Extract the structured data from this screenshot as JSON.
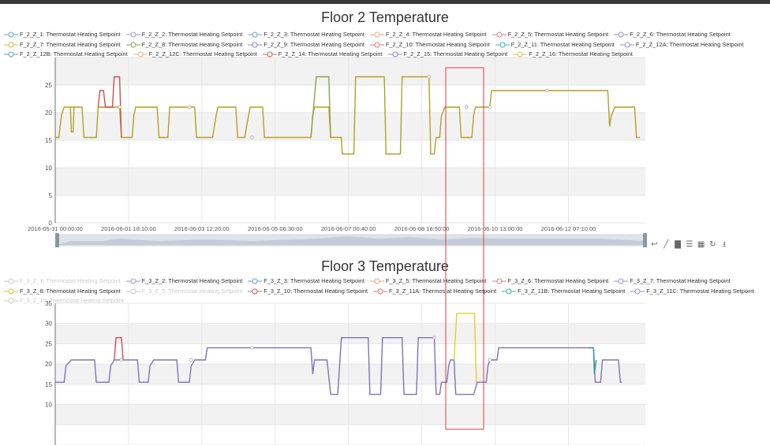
{
  "colors": {
    "grid_band": "#f2f2f2",
    "gridline": "#e6e6e6",
    "axis": "#6e7079",
    "highlight_box": "#e83b3b",
    "floor2_main": "#b2a024",
    "floor2_olive": "#8aa445",
    "floor2_red": "#d34d4d",
    "floor3_main": "#7e73bd",
    "floor3_red": "#d34d4d",
    "floor3_yellow": "#e7cd2b",
    "floor3_teal": "#2f9a9a"
  },
  "chart_data": [
    {
      "type": "line",
      "title": "Floor 2 Temperature",
      "ylim": [
        0,
        30
      ],
      "yticks": [
        "0",
        "5",
        "10",
        "15",
        "20",
        "25"
      ],
      "xticks": [
        "2016-05-31 00:00:00",
        "2016-06-01 18:10:00",
        "2016-06-03 12:20:00",
        "2016-06-05 06:30:00",
        "2016-06-07 00:40:00",
        "2016-06-08 18:50:00",
        "2016-06-10 13:00:00",
        "2016-06-12 07:10:00"
      ],
      "grid": true,
      "legend_position": "top",
      "legend": [
        {
          "name": "F_2_Z_1: Thermostat Heating Setpoint",
          "color": "#5aa9d6",
          "on": true
        },
        {
          "name": "F_2_Z_2: Thermostat Heating Setpoint",
          "color": "#a39ad0",
          "on": true
        },
        {
          "name": "F_2_Z_3: Thermostat Heating Setpoint",
          "color": "#6aa0d8",
          "on": true
        },
        {
          "name": "F_2_Z_4: Thermostat Heating Setpoint",
          "color": "#f0a58a",
          "on": true
        },
        {
          "name": "F_2_Z_5: Thermostat Heating Setpoint",
          "color": "#e08080",
          "on": true
        },
        {
          "name": "F_2_Z_6: Thermostat Heating Setpoint",
          "color": "#a090c8",
          "on": true
        },
        {
          "name": "F_2_Z_7: Thermostat Heating Setpoint",
          "color": "#d4b84a",
          "on": true
        },
        {
          "name": "F_2_Z_8: Thermostat Heating Setpoint",
          "color": "#8aa445",
          "on": true
        },
        {
          "name": "F_2_Z_9: Thermostat Heating Setpoint",
          "color": "#8a8ab0",
          "on": true
        },
        {
          "name": "F_2_Z_10: Thermostat Heating Setpoint",
          "color": "#e07a7a",
          "on": true
        },
        {
          "name": "F_2_Z_11: Thermostat Heating Setpoint",
          "color": "#3fb0b0",
          "on": true
        },
        {
          "name": "F_2_Z_12A: Thermostat Heating Setpoint",
          "color": "#9c8fc6",
          "on": true
        },
        {
          "name": "F_2_Z_12B: Thermostat Heating Setpoint",
          "color": "#6b8fd0",
          "on": true
        },
        {
          "name": "F_2_Z_12C: Thermostat Heating Setpoint",
          "color": "#f0b080",
          "on": true
        },
        {
          "name": "F_2_Z_14: Thermostat Heating Setpoint",
          "color": "#c86060",
          "on": true
        },
        {
          "name": "F_2_Z_15: Thermostat Heating Setpoint",
          "color": "#8a80c0",
          "on": true
        },
        {
          "name": "F_2_Z_16: Thermostat Heating Setpoint",
          "color": "#e0c040",
          "on": true
        }
      ],
      "series": [
        {
          "color_key": "floor2_main",
          "points": [
            [
              0,
              15.5
            ],
            [
              0.2,
              15.5
            ],
            [
              0.35,
              19.5
            ],
            [
              0.5,
              21
            ],
            [
              1.5,
              21
            ],
            [
              1.6,
              15.5
            ],
            [
              2.3,
              15.5
            ],
            [
              2.4,
              21
            ],
            [
              3.6,
              21
            ],
            [
              3.7,
              15.5
            ],
            [
              4.3,
              15.5
            ],
            [
              4.4,
              19.5
            ],
            [
              4.5,
              21
            ],
            [
              5.7,
              21
            ],
            [
              5.8,
              15.5
            ],
            [
              6.3,
              15.5
            ],
            [
              6.4,
              21
            ],
            [
              7.8,
              21
            ],
            [
              7.9,
              15.5
            ],
            [
              8.8,
              15.5
            ],
            [
              8.9,
              17.5
            ],
            [
              9.0,
              19.5
            ],
            [
              9.1,
              21
            ],
            [
              10.1,
              21
            ],
            [
              10.2,
              15.5
            ],
            [
              10.6,
              15.5
            ],
            [
              10.7,
              17.5
            ],
            [
              10.9,
              21
            ],
            [
              11.6,
              21
            ],
            [
              11.7,
              15.5
            ],
            [
              14.3,
              15.5
            ],
            [
              14.4,
              19.5
            ],
            [
              14.5,
              21
            ],
            [
              15.3,
              21
            ],
            [
              15.4,
              15.5
            ],
            [
              16.0,
              15.5
            ],
            [
              16.05,
              12.5
            ],
            [
              16.7,
              12.5
            ],
            [
              16.8,
              26.5
            ],
            [
              18.4,
              26.5
            ],
            [
              18.5,
              12.5
            ],
            [
              19.3,
              12.5
            ],
            [
              19.4,
              26.5
            ],
            [
              20.9,
              26.5
            ],
            [
              21.0,
              12.5
            ],
            [
              21.2,
              12.5
            ],
            [
              21.3,
              15.5
            ],
            [
              21.5,
              15.5
            ],
            [
              21.6,
              19.5
            ],
            [
              21.8,
              21
            ],
            [
              22.6,
              21
            ],
            [
              22.7,
              15.5
            ],
            [
              23.3,
              15.5
            ],
            [
              23.4,
              19.5
            ],
            [
              23.5,
              21
            ],
            [
              24.0,
              21
            ],
            [
              24.3,
              21
            ],
            [
              24.4,
              24
            ],
            [
              30.9,
              24
            ],
            [
              31.0,
              17.5
            ],
            [
              31.1,
              19.5
            ],
            [
              31.3,
              21
            ],
            [
              32.4,
              21
            ],
            [
              32.5,
              15.5
            ],
            [
              32.7,
              15.5
            ]
          ]
        },
        {
          "color_key": "floor2_olive",
          "points": [
            [
              14.3,
              15.5
            ],
            [
              14.6,
              26.5
            ],
            [
              15.3,
              26.5
            ],
            [
              15.4,
              15.5
            ]
          ]
        },
        {
          "color_key": "floor2_red",
          "points": [
            [
              2.4,
              21
            ],
            [
              2.5,
              24
            ],
            [
              2.7,
              24
            ],
            [
              2.8,
              21
            ],
            [
              3.2,
              21
            ],
            [
              3.3,
              26.5
            ],
            [
              3.6,
              26.5
            ],
            [
              3.7,
              15.5
            ]
          ]
        },
        {
          "color_key": "floor2_main",
          "points": [
            [
              0.85,
              21
            ],
            [
              0.9,
              16.5
            ],
            [
              1.0,
              16.5
            ],
            [
              1.05,
              21
            ]
          ]
        }
      ],
      "markers": [
        [
          3.6,
          21
        ],
        [
          7.5,
          21
        ],
        [
          11.0,
          15.5
        ],
        [
          20.9,
          26.5
        ],
        [
          23.0,
          21
        ],
        [
          24.3,
          21
        ],
        [
          27.5,
          24
        ]
      ]
    },
    {
      "type": "line",
      "title": "Floor 3 Temperature",
      "ylim": [
        0,
        35
      ],
      "yticks": [
        "10",
        "15",
        "20",
        "25",
        "30",
        "35"
      ],
      "grid": true,
      "legend_position": "top",
      "legend": [
        {
          "name": "F_3_Z_1: Thermostat Heating Setpoint",
          "color": "#cccccc",
          "on": false
        },
        {
          "name": "F_3_Z_2: Thermostat Heating Setpoint",
          "color": "#a39ad0",
          "on": true
        },
        {
          "name": "F_3_Z_3: Thermostat Heating Setpoint",
          "color": "#6aa0d8",
          "on": true
        },
        {
          "name": "F_3_Z_5: Thermostat Heating Setpoint",
          "color": "#f0a58a",
          "on": true
        },
        {
          "name": "F_3_Z_6: Thermostat Heating Setpoint",
          "color": "#e08080",
          "on": true
        },
        {
          "name": "F_3_Z_7: Thermostat Heating Setpoint",
          "color": "#a090c8",
          "on": true
        },
        {
          "name": "F_3_Z_8: Thermostat Heating Setpoint",
          "color": "#e0c040",
          "on": true
        },
        {
          "name": "F_3_Z_9: Thermostat Heating Setpoint",
          "color": "#cccccc",
          "on": false
        },
        {
          "name": "F_3_Z_10: Thermostat Heating Setpoint",
          "color": "#c86060",
          "on": true
        },
        {
          "name": "F_3_Z_11A: Thermostat Heating Setpoint",
          "color": "#e07a7a",
          "on": true
        },
        {
          "name": "F_3_Z_11B: Thermostat Heating Setpoint",
          "color": "#3fb0b0",
          "on": true
        },
        {
          "name": "F_3_Z_11C: Thermostat Heating Setpoint",
          "color": "#9c8fc6",
          "on": true
        },
        {
          "name": "F_3_Z_12: Thermostat Heating Setpoint",
          "color": "#cccccc",
          "on": false
        }
      ],
      "series": [
        {
          "color_key": "floor3_main",
          "points": [
            [
              0,
              15.5
            ],
            [
              0.5,
              15.5
            ],
            [
              0.6,
              19.5
            ],
            [
              0.9,
              21
            ],
            [
              2.2,
              21
            ],
            [
              2.3,
              15.5
            ],
            [
              3.0,
              15.5
            ],
            [
              3.1,
              19.5
            ],
            [
              3.3,
              21
            ],
            [
              4.6,
              21
            ],
            [
              4.7,
              15.5
            ],
            [
              5.2,
              15.5
            ],
            [
              5.3,
              19.5
            ],
            [
              5.5,
              21
            ],
            [
              6.8,
              21
            ],
            [
              6.9,
              15.5
            ],
            [
              7.5,
              15.5
            ],
            [
              7.6,
              19.5
            ],
            [
              7.8,
              21
            ],
            [
              8.4,
              21
            ],
            [
              8.5,
              24
            ],
            [
              14.3,
              24
            ],
            [
              14.4,
              17.5
            ],
            [
              14.5,
              21
            ],
            [
              15.2,
              21
            ],
            [
              15.4,
              12.5
            ],
            [
              15.8,
              12.5
            ],
            [
              16.0,
              26.5
            ],
            [
              17.5,
              26.5
            ],
            [
              17.6,
              12.5
            ],
            [
              18.2,
              12.5
            ],
            [
              18.3,
              26.5
            ],
            [
              19.4,
              26.5
            ],
            [
              19.5,
              12.5
            ],
            [
              20.2,
              12.5
            ],
            [
              20.3,
              26.5
            ],
            [
              21.2,
              26.5
            ],
            [
              21.3,
              12.5
            ],
            [
              21.5,
              12.5
            ],
            [
              21.6,
              15.5
            ],
            [
              21.9,
              15.5
            ],
            [
              22.0,
              19.5
            ],
            [
              22.1,
              21
            ],
            [
              22.3,
              21
            ],
            [
              22.4,
              12.5
            ],
            [
              23.4,
              12.5
            ],
            [
              23.6,
              15.5
            ],
            [
              24.1,
              15.5
            ],
            [
              24.2,
              19.5
            ],
            [
              24.3,
              21
            ],
            [
              24.7,
              21
            ],
            [
              24.8,
              24
            ],
            [
              30.1,
              24
            ],
            [
              30.2,
              15.5
            ],
            [
              30.5,
              15.5
            ],
            [
              30.6,
              21
            ],
            [
              31.5,
              21
            ],
            [
              31.6,
              15.5
            ],
            [
              31.7,
              15.5
            ]
          ]
        },
        {
          "color_key": "floor3_red",
          "points": [
            [
              3.3,
              21
            ],
            [
              3.4,
              26.5
            ],
            [
              3.7,
              26.5
            ],
            [
              3.8,
              21
            ]
          ]
        },
        {
          "color_key": "floor3_yellow",
          "points": [
            [
              22.3,
              21
            ],
            [
              22.45,
              32.5
            ],
            [
              23.45,
              32.5
            ],
            [
              23.55,
              15.5
            ]
          ]
        },
        {
          "color_key": "floor3_teal",
          "points": [
            [
              29.8,
              24
            ],
            [
              30.1,
              24
            ],
            [
              30.15,
              17.5
            ],
            [
              30.25,
              21
            ]
          ]
        }
      ],
      "markers": [
        [
          3.7,
          21
        ],
        [
          7.6,
          21
        ],
        [
          11.0,
          24
        ],
        [
          21.2,
          26.5
        ],
        [
          24.3,
          21
        ]
      ]
    }
  ],
  "toolbox": {
    "icons": [
      "zoom-reset-icon",
      "line-chart-icon",
      "bar-chart-icon",
      "stack-icon",
      "tiled-icon",
      "refresh-icon",
      "download-icon"
    ]
  }
}
